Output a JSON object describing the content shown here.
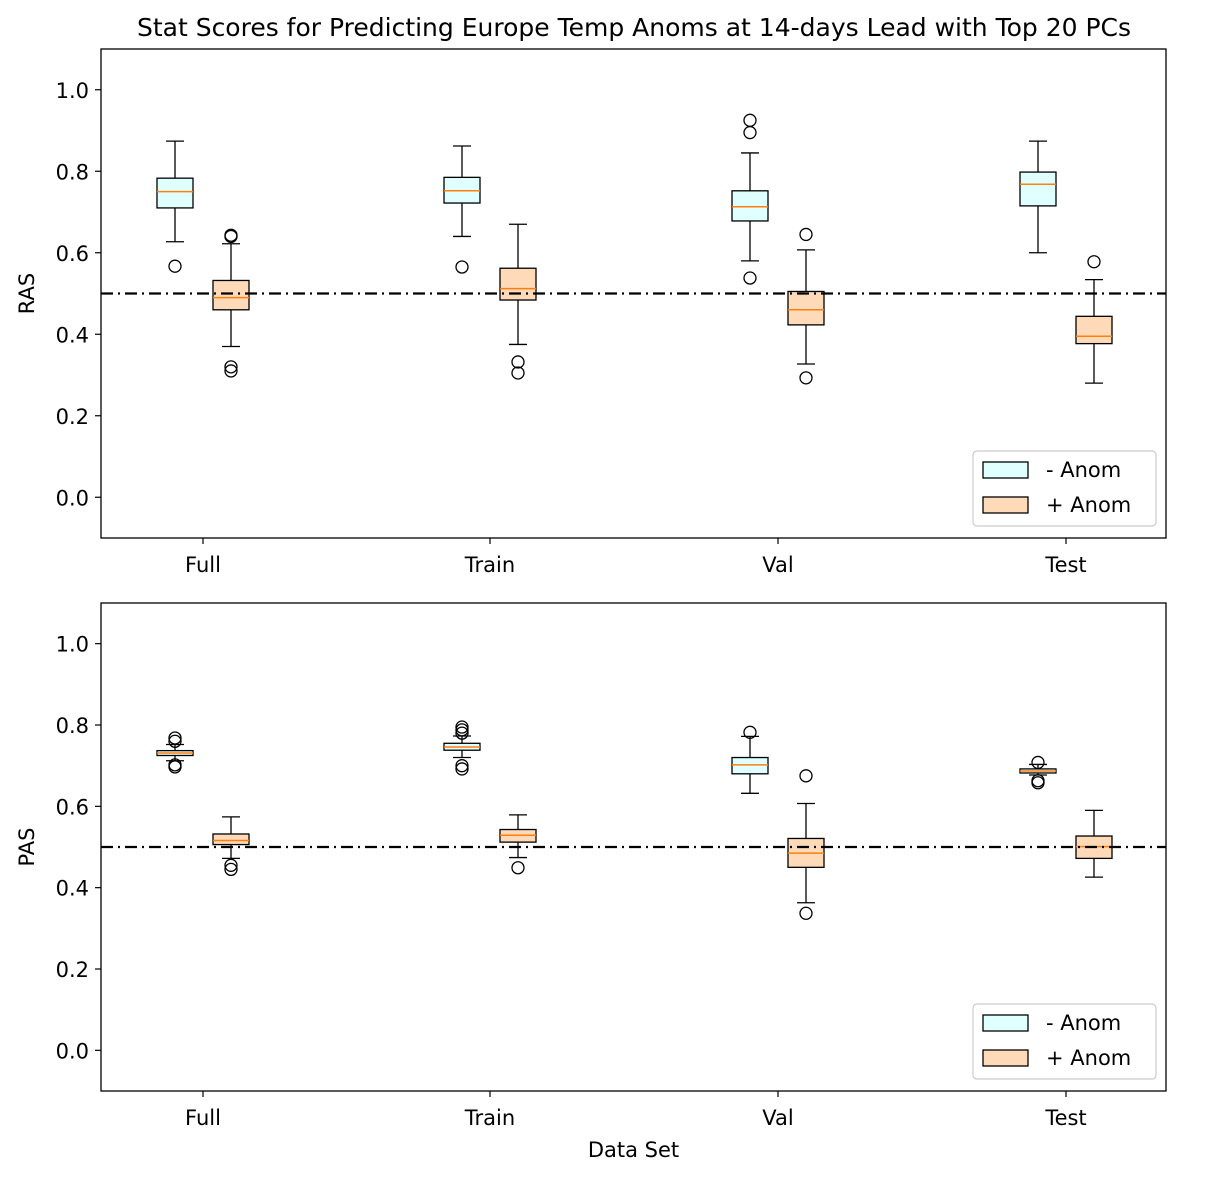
{
  "title": "Stat Scores for Predicting Europe Temp Anoms at 14-days Lead with Top 20 PCs",
  "colors": {
    "neg": "#e0ffff",
    "pos": "#ffdab9",
    "median": "#ff7f0e",
    "edge": "#000000"
  },
  "chart_data": [
    {
      "type": "boxplot",
      "ylabel": "RAS",
      "xlabel": "",
      "ylim": [
        -0.1,
        1.1
      ],
      "yticks": [
        "0.0",
        "0.2",
        "0.4",
        "0.6",
        "0.8",
        "1.0"
      ],
      "categories": [
        "Full",
        "Train",
        "Val",
        "Test"
      ],
      "reference_line": 0.5,
      "legend": {
        "position": "lower-right",
        "entries": [
          "- Anom",
          "+ Anom"
        ]
      },
      "series": [
        {
          "name": "- Anom",
          "boxes": [
            {
              "q1": 0.71,
              "median": 0.75,
              "q3": 0.783,
              "whislo": 0.627,
              "whishi": 0.874,
              "fliers": [
                0.567
              ]
            },
            {
              "q1": 0.722,
              "median": 0.752,
              "q3": 0.785,
              "whislo": 0.64,
              "whishi": 0.862,
              "fliers": [
                0.565
              ]
            },
            {
              "q1": 0.678,
              "median": 0.713,
              "q3": 0.752,
              "whislo": 0.58,
              "whishi": 0.845,
              "fliers": [
                0.538,
                0.895,
                0.925
              ]
            },
            {
              "q1": 0.715,
              "median": 0.768,
              "q3": 0.798,
              "whislo": 0.6,
              "whishi": 0.874,
              "fliers": []
            }
          ]
        },
        {
          "name": "+ Anom",
          "boxes": [
            {
              "q1": 0.46,
              "median": 0.49,
              "q3": 0.532,
              "whislo": 0.37,
              "whishi": 0.622,
              "fliers": [
                0.31,
                0.32,
                0.64,
                0.643
              ]
            },
            {
              "q1": 0.484,
              "median": 0.512,
              "q3": 0.562,
              "whislo": 0.375,
              "whishi": 0.67,
              "fliers": [
                0.305,
                0.332
              ]
            },
            {
              "q1": 0.423,
              "median": 0.46,
              "q3": 0.505,
              "whislo": 0.327,
              "whishi": 0.607,
              "fliers": [
                0.293,
                0.645
              ]
            },
            {
              "q1": 0.377,
              "median": 0.395,
              "q3": 0.444,
              "whislo": 0.28,
              "whishi": 0.534,
              "fliers": [
                0.578
              ]
            }
          ]
        }
      ]
    },
    {
      "type": "boxplot",
      "ylabel": "PAS",
      "xlabel": "Data Set",
      "ylim": [
        -0.1,
        1.1
      ],
      "yticks": [
        "0.0",
        "0.2",
        "0.4",
        "0.6",
        "0.8",
        "1.0"
      ],
      "categories": [
        "Full",
        "Train",
        "Val",
        "Test"
      ],
      "reference_line": 0.5,
      "legend": {
        "position": "lower-right",
        "entries": [
          "- Anom",
          "+ Anom"
        ]
      },
      "series": [
        {
          "name": "- Anom",
          "boxes": [
            {
              "q1": 0.725,
              "median": 0.731,
              "q3": 0.737,
              "whislo": 0.712,
              "whishi": 0.752,
              "fliers": [
                0.697,
                0.702,
                0.76,
                0.768
              ]
            },
            {
              "q1": 0.738,
              "median": 0.746,
              "q3": 0.755,
              "whislo": 0.72,
              "whishi": 0.773,
              "fliers": [
                0.692,
                0.7,
                0.78,
                0.788,
                0.795
              ]
            },
            {
              "q1": 0.68,
              "median": 0.702,
              "q3": 0.72,
              "whislo": 0.632,
              "whishi": 0.772,
              "fliers": [
                0.782
              ]
            },
            {
              "q1": 0.682,
              "median": 0.687,
              "q3": 0.692,
              "whislo": 0.677,
              "whishi": 0.703,
              "fliers": [
                0.658,
                0.663,
                0.708
              ]
            }
          ]
        },
        {
          "name": "+ Anom",
          "boxes": [
            {
              "q1": 0.506,
              "median": 0.516,
              "q3": 0.532,
              "whislo": 0.472,
              "whishi": 0.574,
              "fliers": [
                0.445,
                0.455
              ]
            },
            {
              "q1": 0.512,
              "median": 0.529,
              "q3": 0.543,
              "whislo": 0.474,
              "whishi": 0.579,
              "fliers": [
                0.449
              ]
            },
            {
              "q1": 0.45,
              "median": 0.485,
              "q3": 0.521,
              "whislo": 0.363,
              "whishi": 0.607,
              "fliers": [
                0.337,
                0.675
              ]
            },
            {
              "q1": 0.472,
              "median": 0.501,
              "q3": 0.527,
              "whislo": 0.426,
              "whishi": 0.59,
              "fliers": []
            }
          ]
        }
      ]
    }
  ]
}
